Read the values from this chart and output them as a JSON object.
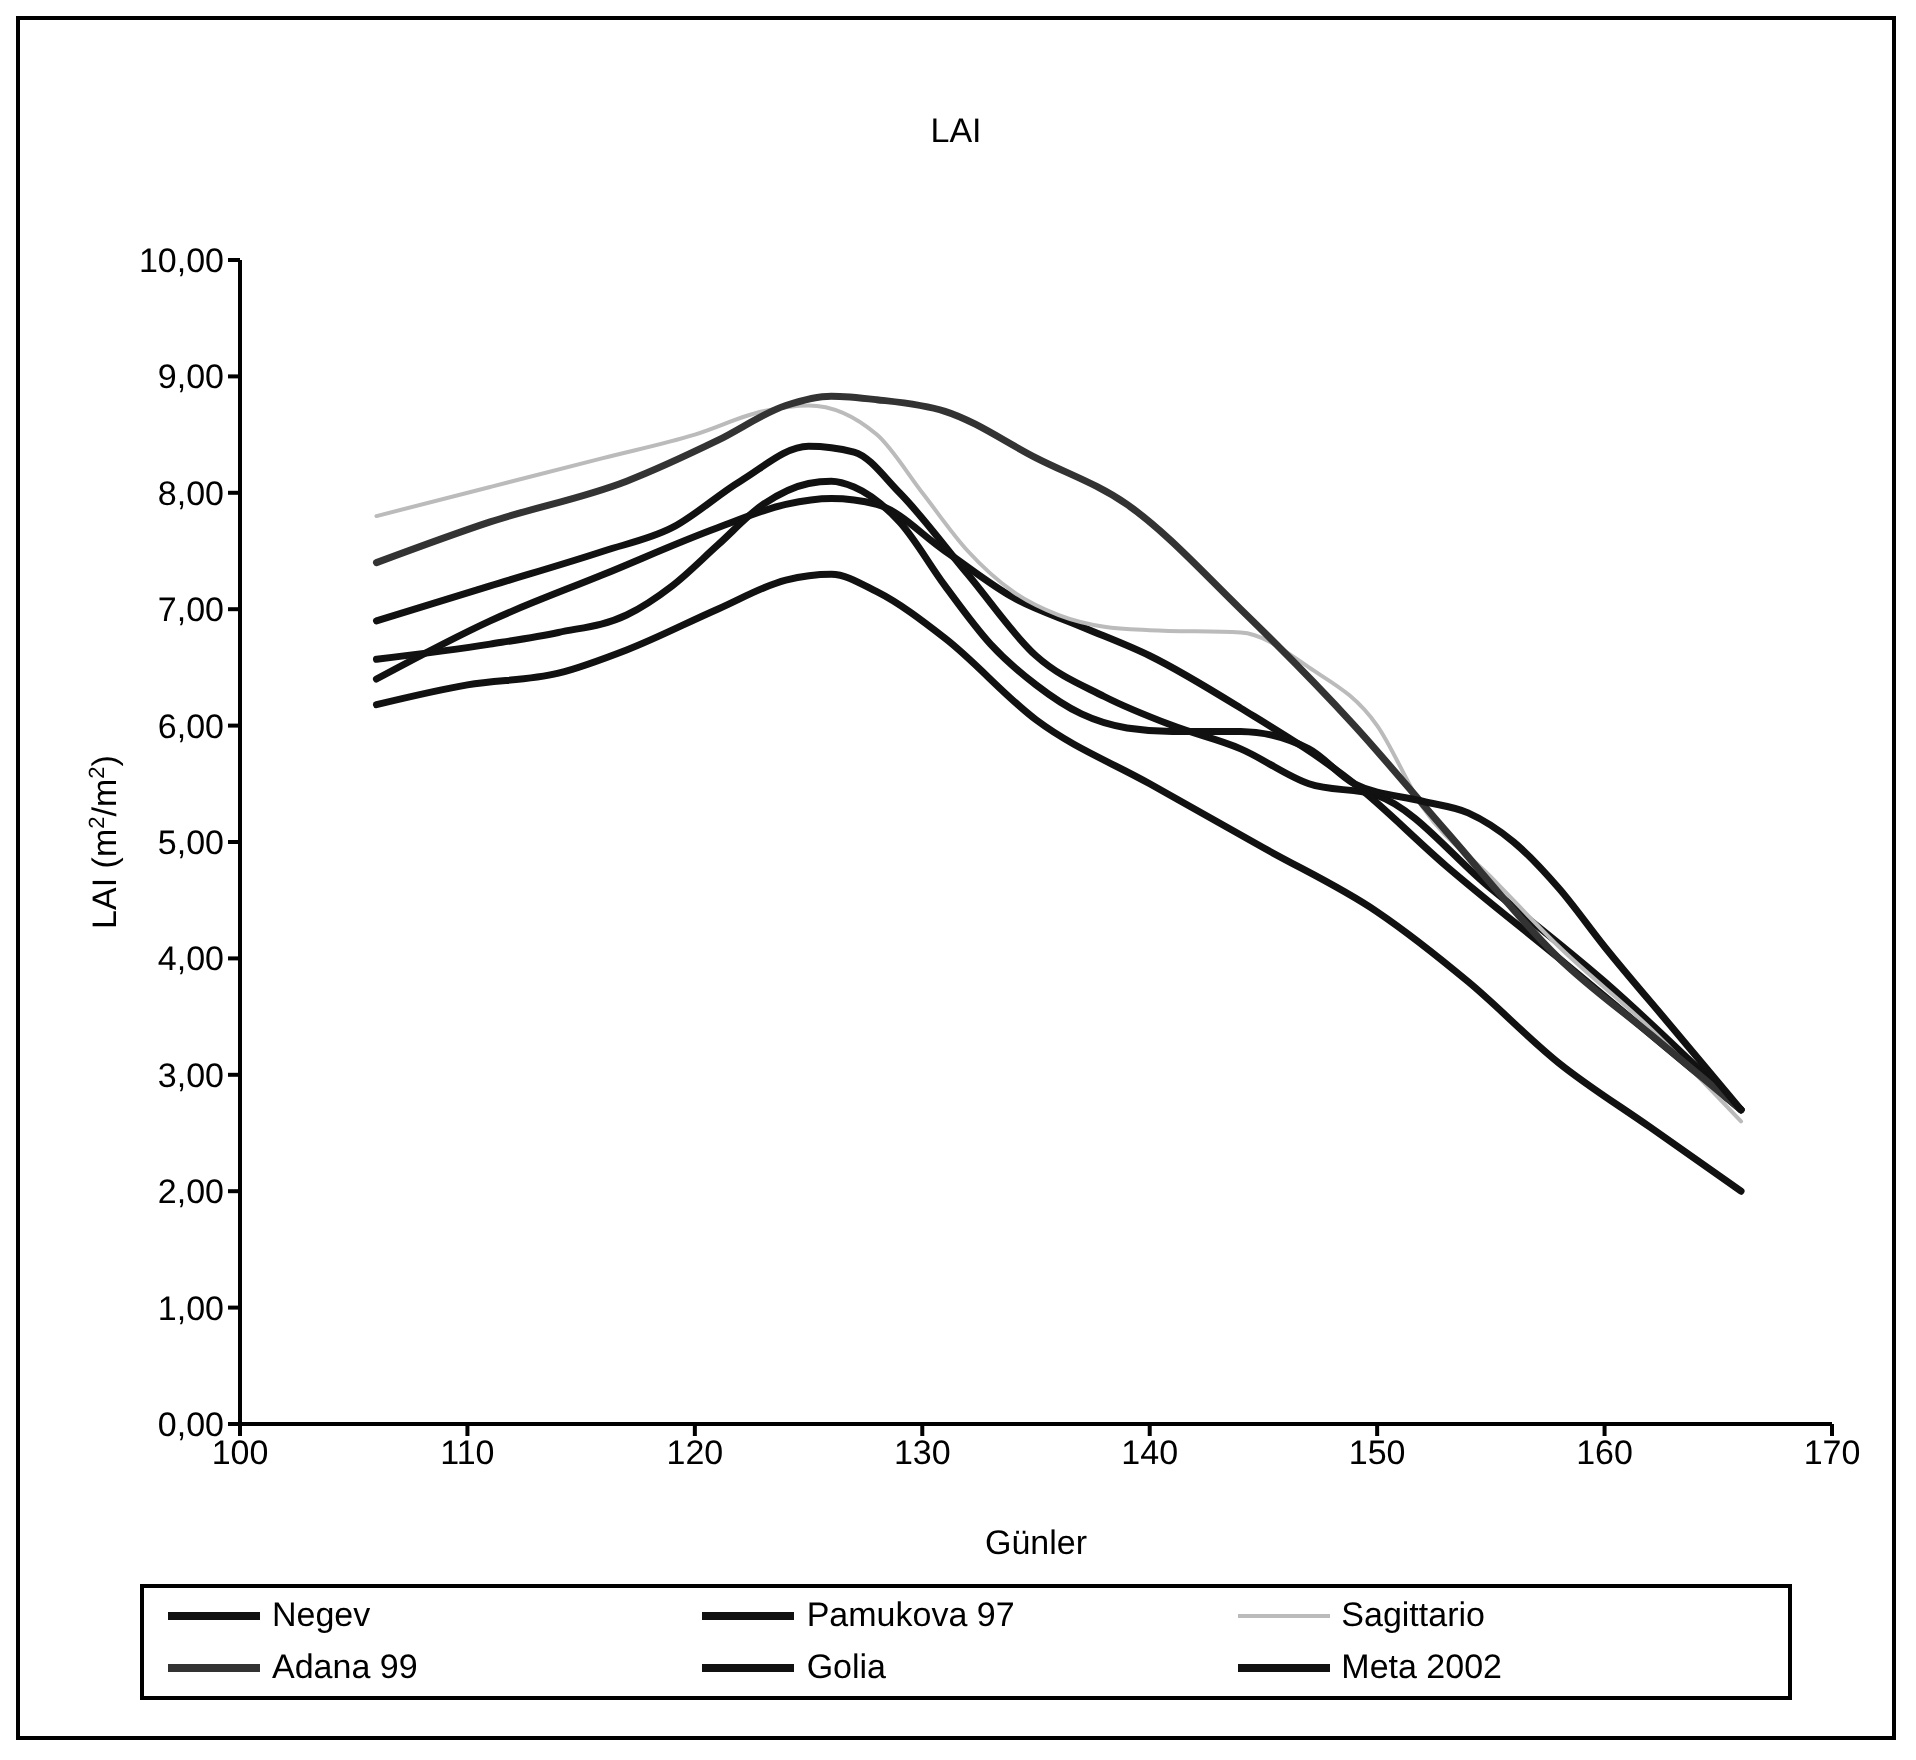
{
  "chart_data": {
    "type": "line",
    "title": "LAI",
    "xlabel": "Günler",
    "ylabel": "LAI (m$^{2}$/m$^{2}$)",
    "xlim": [
      100,
      170
    ],
    "xticks": [
      100,
      110,
      120,
      130,
      140,
      150,
      160,
      170
    ],
    "ylim": [
      0,
      10
    ],
    "yticks": [
      {
        "value": 0,
        "label": "0,00"
      },
      {
        "value": 1,
        "label": "1,00"
      },
      {
        "value": 2,
        "label": "2,00"
      },
      {
        "value": 3,
        "label": "3,00"
      },
      {
        "value": 4,
        "label": "4,00"
      },
      {
        "value": 5,
        "label": "5,00"
      },
      {
        "value": 6,
        "label": "6,00"
      },
      {
        "value": 7,
        "label": "7,00"
      },
      {
        "value": 8,
        "label": "8,00"
      },
      {
        "value": 9,
        "label": "9,00"
      },
      {
        "value": 10,
        "label": "10,00"
      }
    ],
    "legend": "bottom",
    "marker": "none",
    "line_style": "solid",
    "series": [
      {
        "name": "Negev",
        "color": "#111111",
        "x": [
          106,
          111,
          116,
          119,
          122,
          125,
          127,
          129,
          132,
          135,
          138,
          141,
          144,
          147,
          150,
          155,
          160,
          166
        ],
        "values": [
          6.9,
          7.2,
          7.5,
          7.7,
          8.1,
          8.4,
          8.35,
          8.0,
          7.3,
          6.6,
          6.25,
          6.0,
          5.8,
          5.5,
          5.4,
          4.6,
          3.8,
          2.7
        ]
      },
      {
        "name": "Pamukova 97",
        "color": "#111111",
        "x": [
          106,
          111,
          116,
          121,
          124,
          126,
          128,
          131,
          134,
          137,
          140,
          144,
          149,
          153,
          158,
          166
        ],
        "values": [
          6.4,
          6.9,
          7.3,
          7.7,
          7.9,
          7.95,
          7.9,
          7.5,
          7.1,
          6.85,
          6.6,
          6.15,
          5.5,
          4.8,
          4.0,
          2.7
        ]
      },
      {
        "name": "Sagittario",
        "color": "#bbbbbb",
        "x": [
          106,
          111,
          116,
          120,
          123,
          125,
          128,
          130,
          132,
          134,
          136,
          138,
          140,
          144,
          147,
          150,
          152,
          155,
          158,
          162,
          166
        ],
        "values": [
          7.8,
          8.05,
          8.3,
          8.5,
          8.7,
          8.75,
          8.5,
          8.0,
          7.5,
          7.15,
          6.95,
          6.85,
          6.82,
          6.8,
          6.5,
          6.0,
          5.3,
          4.7,
          4.1,
          3.4,
          2.6
        ]
      },
      {
        "name": "Adana 99",
        "color": "#333333",
        "x": [
          106,
          111,
          117,
          121,
          124,
          126,
          128,
          131,
          135,
          139,
          144,
          149,
          153,
          158,
          162,
          166
        ],
        "values": [
          7.4,
          7.75,
          8.1,
          8.45,
          8.75,
          8.83,
          8.8,
          8.7,
          8.3,
          7.9,
          7.0,
          6.0,
          5.1,
          4.0,
          3.35,
          2.7
        ]
      },
      {
        "name": "Golia",
        "color": "#111111",
        "x": [
          106,
          111,
          114,
          117,
          119,
          121,
          123,
          125,
          126,
          127,
          129,
          131,
          133,
          135,
          137,
          139,
          141,
          144,
          147,
          149,
          152,
          154,
          156,
          158,
          160,
          163,
          166
        ],
        "values": [
          6.57,
          6.7,
          6.8,
          6.95,
          7.2,
          7.55,
          7.9,
          8.08,
          8.1,
          8.05,
          7.75,
          7.2,
          6.7,
          6.35,
          6.1,
          5.98,
          5.95,
          5.95,
          5.8,
          5.5,
          5.35,
          5.25,
          5.0,
          4.6,
          4.1,
          3.4,
          2.7
        ]
      },
      {
        "name": "Meta 2002",
        "color": "#111111",
        "x": [
          106,
          110,
          114,
          117,
          121,
          124,
          126,
          128,
          131,
          135,
          140,
          145,
          150,
          154,
          158,
          162,
          166
        ],
        "values": [
          6.18,
          6.35,
          6.45,
          6.65,
          7.0,
          7.25,
          7.3,
          7.15,
          6.75,
          6.05,
          5.5,
          4.95,
          4.4,
          3.8,
          3.1,
          2.55,
          2.0
        ]
      }
    ]
  }
}
